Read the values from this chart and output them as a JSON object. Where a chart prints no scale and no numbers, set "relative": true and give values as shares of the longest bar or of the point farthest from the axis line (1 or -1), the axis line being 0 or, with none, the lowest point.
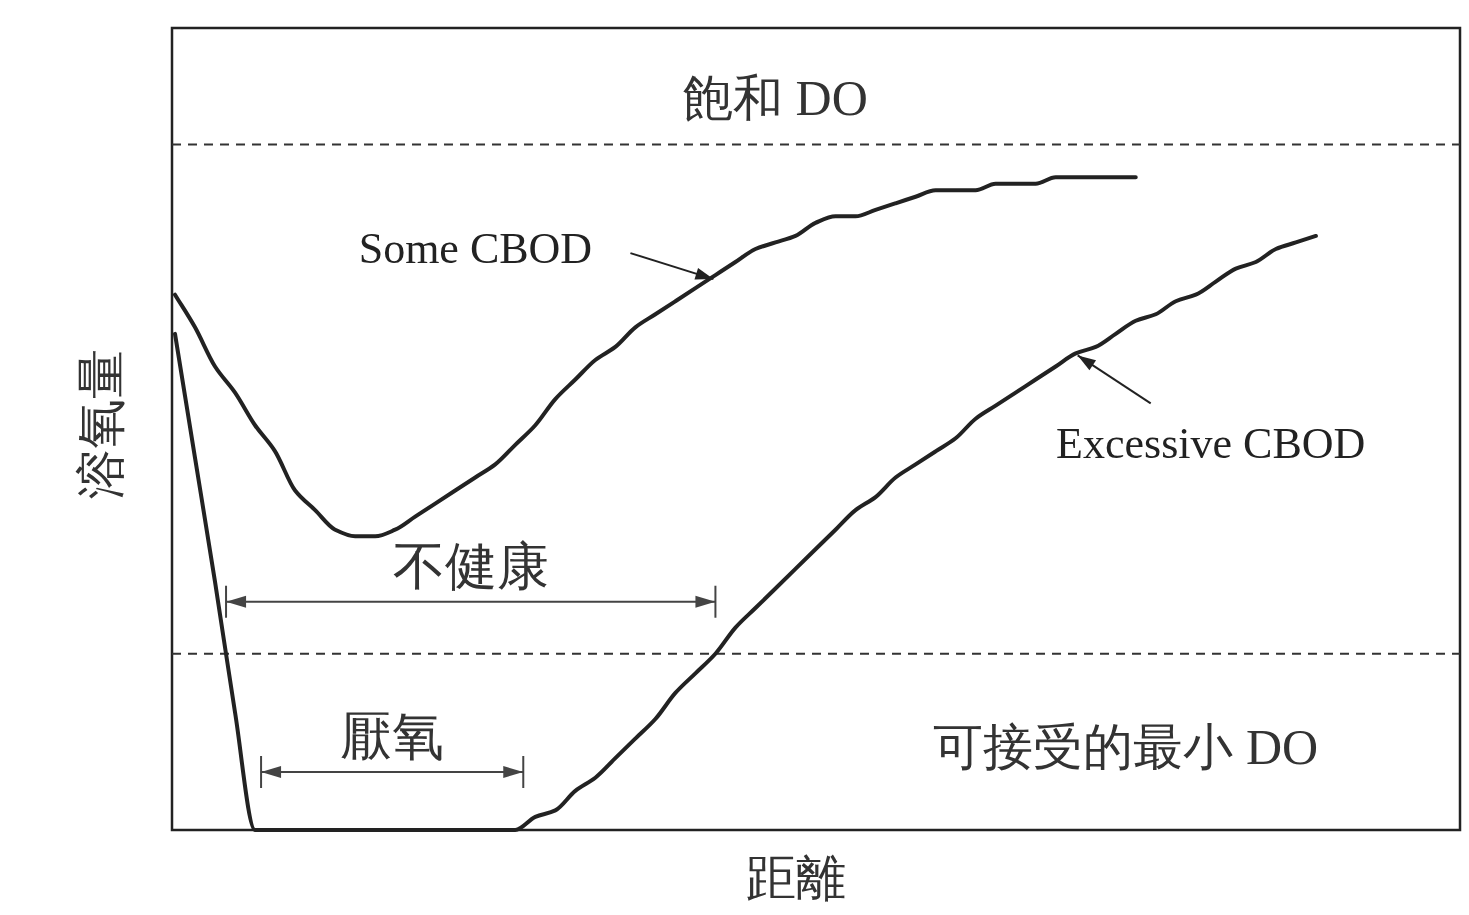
{
  "chart_data": {
    "type": "line",
    "relative": true,
    "categories": [
      null,
      null,
      null,
      null,
      null,
      null,
      null,
      null,
      null,
      null,
      null,
      null,
      null,
      null,
      null,
      null,
      null,
      null,
      null,
      null,
      null,
      null,
      null,
      null,
      null,
      null,
      null,
      null,
      null,
      null,
      null,
      null,
      null,
      null,
      null,
      null,
      null,
      null,
      null,
      null,
      null,
      null,
      null,
      null,
      null,
      null,
      null,
      null,
      null,
      null,
      null,
      null,
      null,
      null,
      null,
      null,
      null,
      null
    ],
    "series": [
      {
        "name": "Some CBOD",
        "color": "#222222",
        "values": [
          0.82,
          0.77,
          0.71,
          0.67,
          0.62,
          0.58,
          0.52,
          0.49,
          0.46,
          0.45,
          0.45,
          0.46,
          0.48,
          0.5,
          0.52,
          0.54,
          0.56,
          0.59,
          0.62,
          0.66,
          0.69,
          0.72,
          0.74,
          0.77,
          0.79,
          0.81,
          0.83,
          0.85,
          0.87,
          0.89,
          0.9,
          0.91,
          0.93,
          0.94,
          0.94,
          0.95,
          0.96,
          0.97,
          0.98,
          0.98,
          0.98,
          0.99,
          0.99,
          0.99,
          1.0,
          1.0,
          1.0,
          1.0,
          1.0,
          null,
          null,
          null,
          null,
          null,
          null,
          null,
          null,
          null
        ]
      },
      {
        "name": "Excessive CBOD",
        "color": "#222222",
        "values": [
          0.76,
          0.57,
          0.38,
          0.18,
          0,
          0,
          0,
          0,
          0,
          0,
          0,
          0,
          0,
          0,
          0,
          0,
          0,
          0,
          0.02,
          0.03,
          0.06,
          0.08,
          0.11,
          0.14,
          0.17,
          0.21,
          0.24,
          0.27,
          0.31,
          0.34,
          0.37,
          0.4,
          0.43,
          0.46,
          0.49,
          0.51,
          0.54,
          0.56,
          0.58,
          0.6,
          0.63,
          0.65,
          0.67,
          0.69,
          0.71,
          0.73,
          0.74,
          0.76,
          0.78,
          0.79,
          0.81,
          0.82,
          0.84,
          0.86,
          0.87,
          0.89,
          0.9,
          0.91
        ]
      }
    ],
    "ref_lines": [
      {
        "axis": "y",
        "value": 1.05,
        "label": "飽和 DO",
        "color": "#333333",
        "line_style": "dashed"
      },
      {
        "axis": "y",
        "value": 0.27,
        "label": "可接受的最小 DO",
        "color": "#333333",
        "line_style": "dashed"
      }
    ],
    "annotations": [
      "不健康",
      "厭氧"
    ],
    "xlabel": "距離",
    "ylabel": "溶氧量"
  }
}
